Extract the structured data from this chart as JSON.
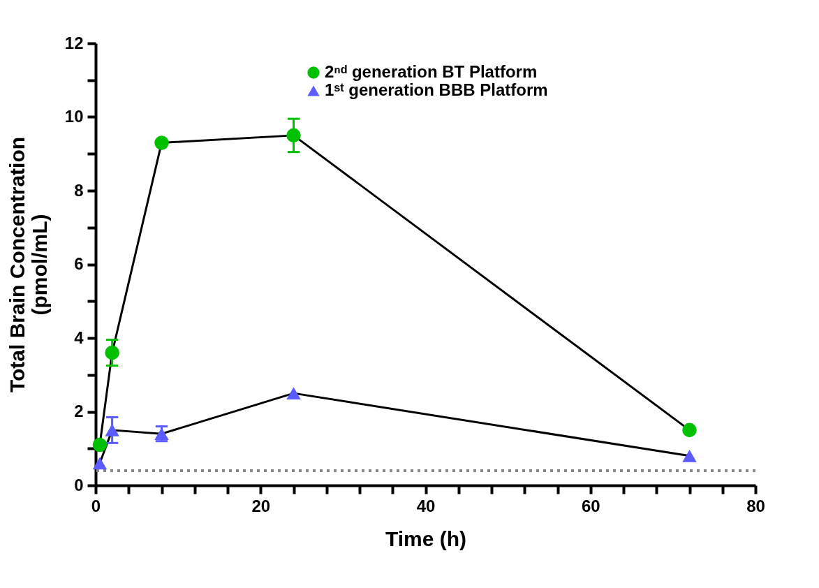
{
  "chart_data": {
    "type": "line",
    "xlabel": "Time (h)",
    "ylabel": "Total Brain Concentration\n(pmol/mL)",
    "xlim": [
      0,
      80
    ],
    "ylim": [
      0,
      12
    ],
    "xticks": [
      0,
      {
        "value": 4,
        "label": null
      },
      {
        "value": 8,
        "label": null
      },
      {
        "value": 12,
        "label": null
      },
      {
        "value": 16,
        "label": null
      },
      20,
      {
        "value": 24,
        "label": null
      },
      {
        "value": 28,
        "label": null
      },
      {
        "value": 32,
        "label": null
      },
      {
        "value": 36,
        "label": null
      },
      40,
      {
        "value": 44,
        "label": null
      },
      {
        "value": 48,
        "label": null
      },
      {
        "value": 52,
        "label": null
      },
      {
        "value": 56,
        "label": null
      },
      60,
      {
        "value": 64,
        "label": null
      },
      {
        "value": 68,
        "label": null
      },
      {
        "value": 72,
        "label": null
      },
      {
        "value": 76,
        "label": null
      },
      80
    ],
    "yticks": [
      0,
      {
        "value": 1,
        "label": null
      },
      2,
      {
        "value": 3,
        "label": null
      },
      4,
      {
        "value": 5,
        "label": null
      },
      6,
      {
        "value": 7,
        "label": null
      },
      8,
      {
        "value": 9,
        "label": null
      },
      10,
      {
        "value": 11,
        "label": null
      },
      12
    ],
    "grid": false,
    "legend": "top",
    "series": [
      {
        "name": "2ⁿᵈ generation BT Platform",
        "color": "#00c000",
        "marker": "circle",
        "x": [
          0.5,
          2,
          8,
          24,
          72
        ],
        "values": [
          1.1,
          3.6,
          9.3,
          9.5,
          1.5
        ],
        "errors": [
          null,
          0.35,
          null,
          0.45,
          null
        ]
      },
      {
        "name": "1ˢᵗ generation BBB Platform",
        "color": "#5b5bff",
        "marker": "triangle",
        "x": [
          0.5,
          2,
          8,
          24,
          72
        ],
        "values": [
          0.6,
          1.5,
          1.4,
          2.5,
          0.8
        ],
        "errors": [
          null,
          0.35,
          0.2,
          null,
          null
        ]
      }
    ],
    "ref_lines": [
      {
        "axis": "y",
        "value": 0.4,
        "color": "#888888",
        "line_style": "dotted"
      }
    ]
  }
}
